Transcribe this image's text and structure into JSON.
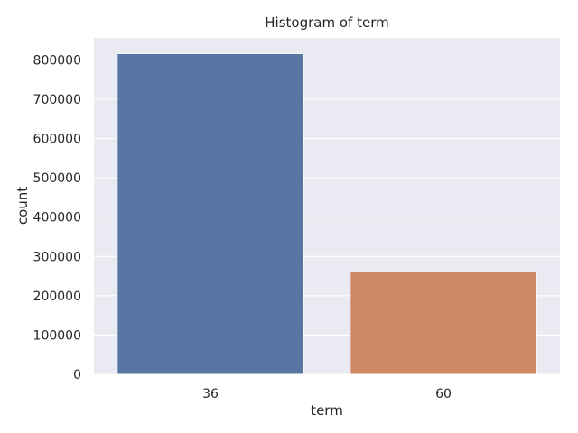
{
  "chart_data": {
    "type": "bar",
    "title": "Histogram of term",
    "xlabel": "term",
    "ylabel": "count",
    "categories": [
      "36",
      "60"
    ],
    "values": [
      816000,
      261000
    ],
    "colors": [
      "#5975a4",
      "#cc8963"
    ],
    "ylim": [
      0,
      856000
    ],
    "yticks": [
      0,
      100000,
      200000,
      300000,
      400000,
      500000,
      600000,
      700000,
      800000
    ],
    "grid": true,
    "background": "#eaeaf2"
  }
}
